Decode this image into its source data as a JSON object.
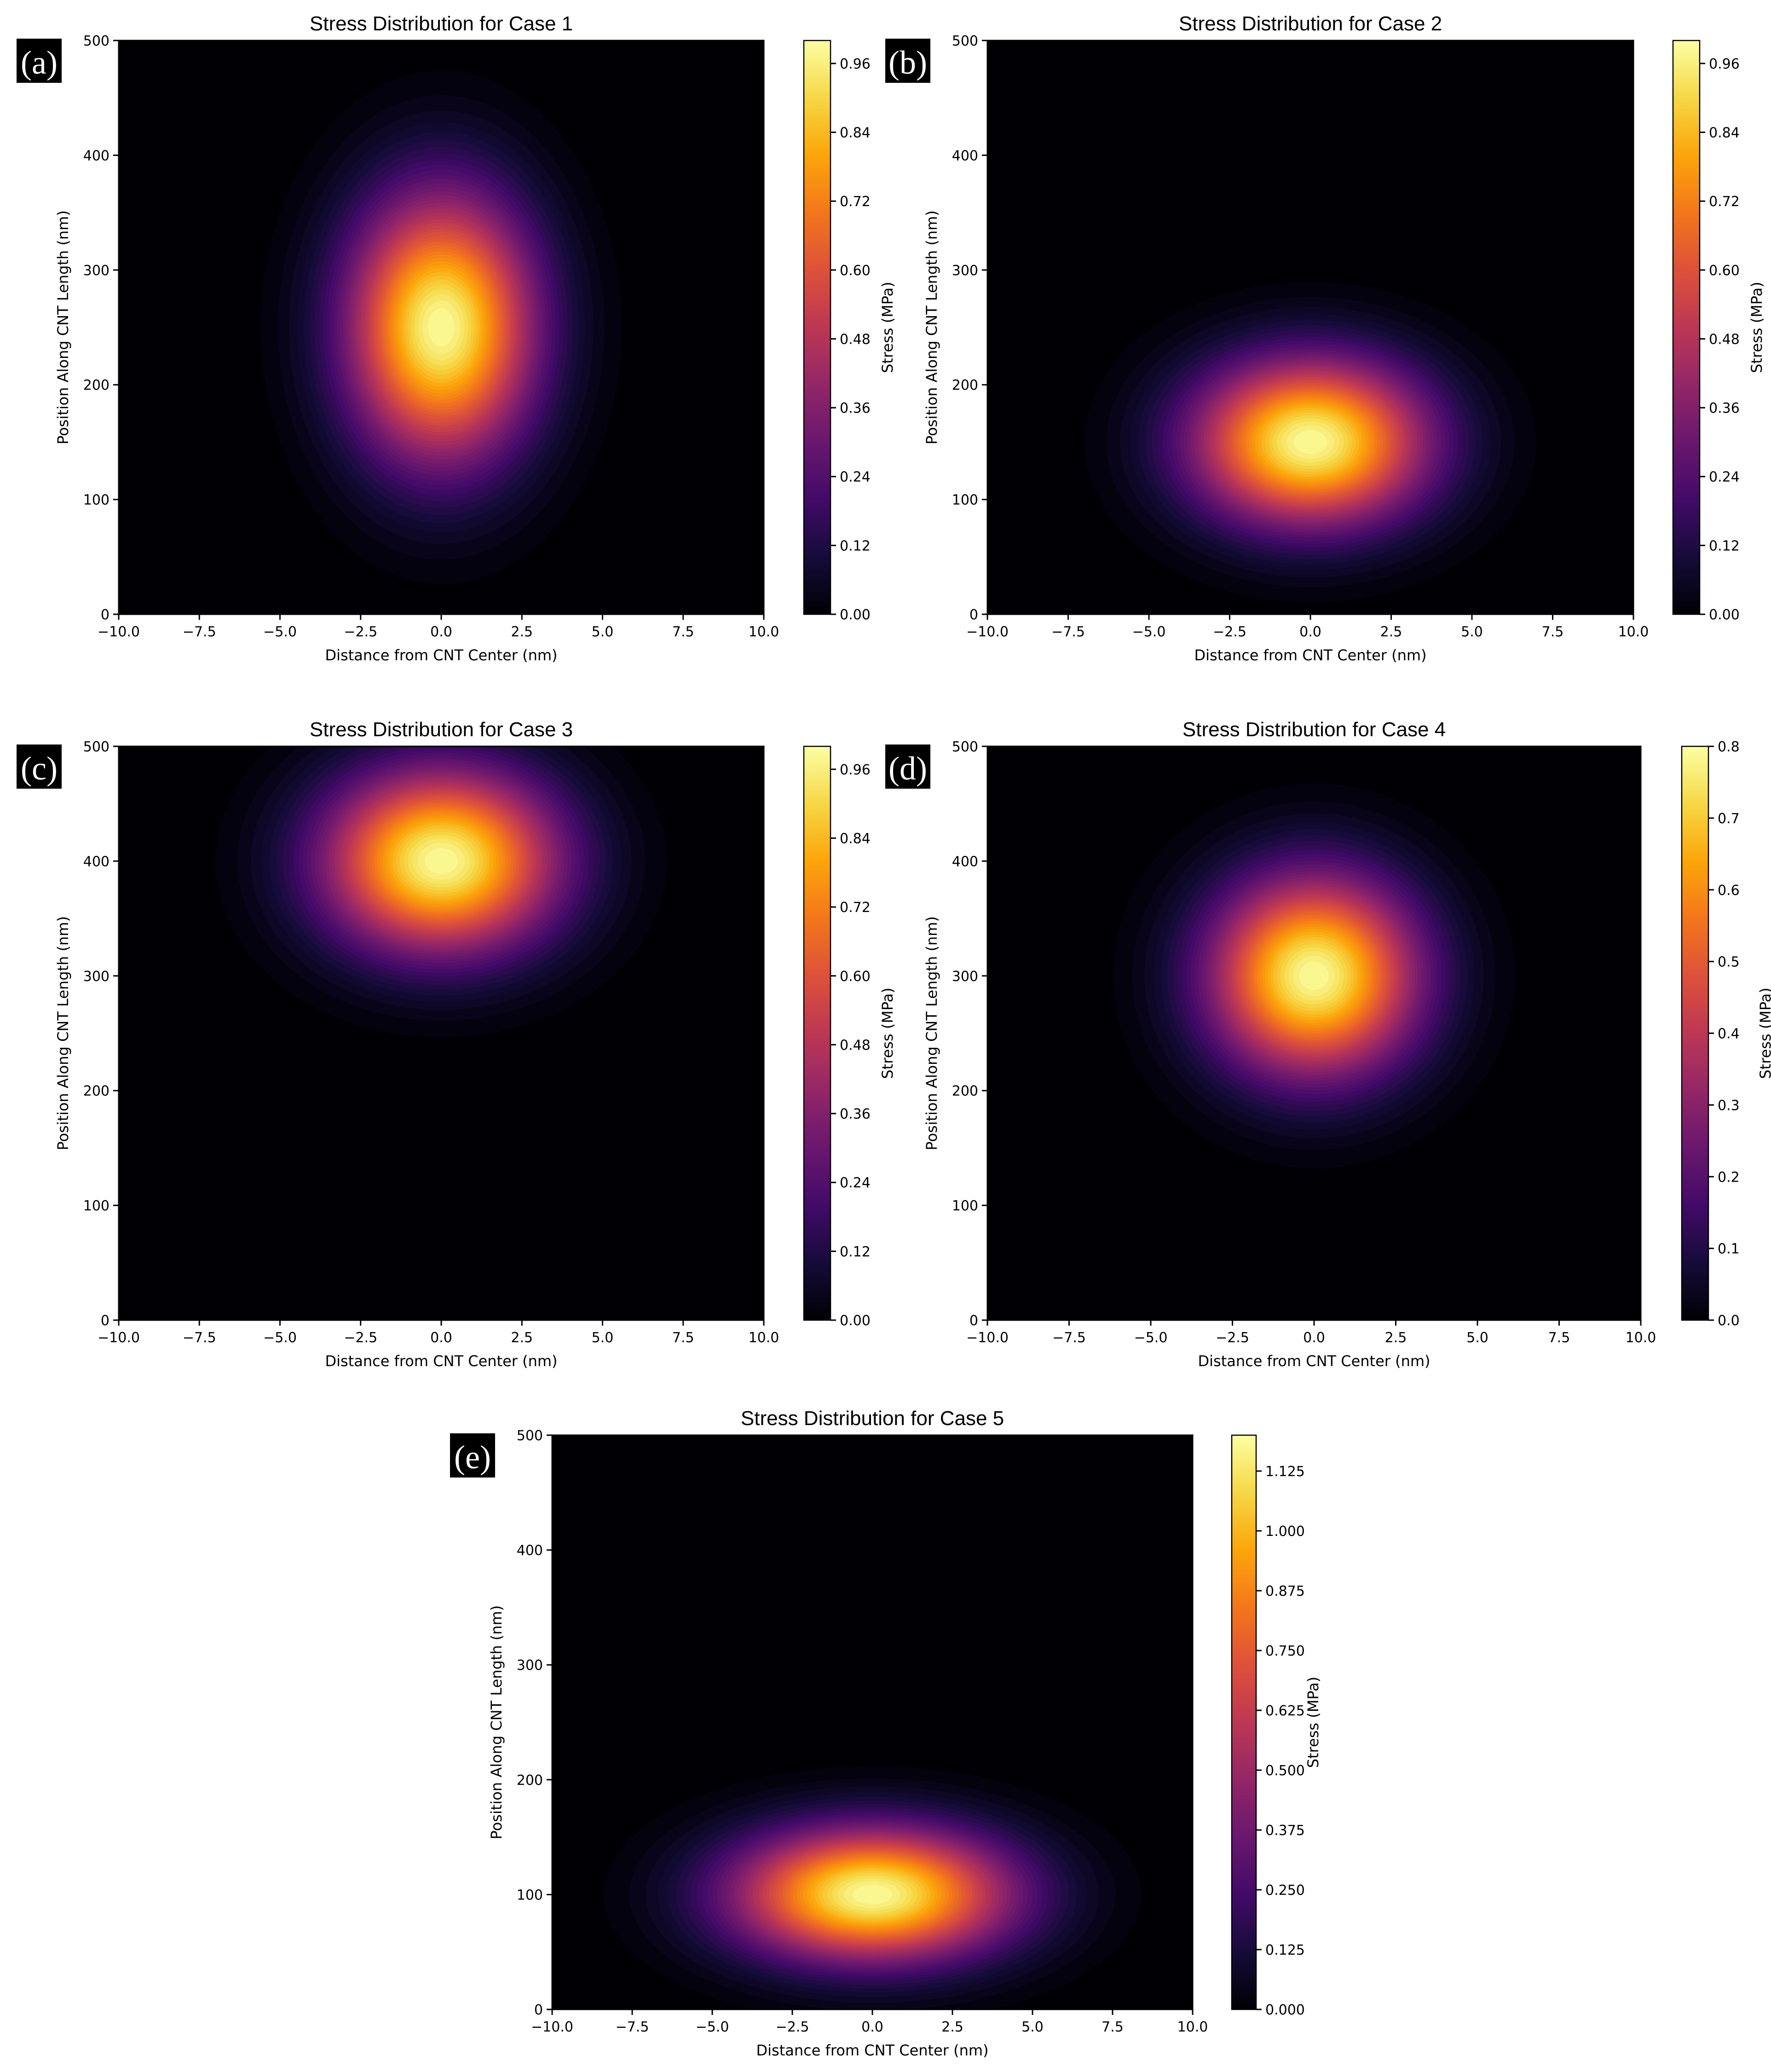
{
  "figure": {
    "colormap": "inferno",
    "background": "#ffffff",
    "panels": [
      {
        "panel_label": "(a)",
        "chart_data": {
          "type": "heatmap",
          "title": "Stress Distribution for Case 1",
          "xlabel": "Distance from CNT Center (nm)",
          "ylabel": "Position Along CNT Length (nm)",
          "colorbar_label": "Stress (MPa)",
          "xlim": [
            -10,
            10
          ],
          "ylim": [
            0,
            500
          ],
          "x_ticks": [
            "−10.0",
            "−7.5",
            "−5.0",
            "−2.5",
            "0.0",
            "2.5",
            "5.0",
            "7.5",
            "10.0"
          ],
          "y_ticks": [
            "0",
            "100",
            "200",
            "300",
            "400",
            "500"
          ],
          "clim": [
            0,
            1.0
          ],
          "colorbar_ticks": [
            "0.00",
            "0.12",
            "0.24",
            "0.36",
            "0.48",
            "0.60",
            "0.72",
            "0.84",
            "0.96"
          ],
          "peak": {
            "x": 0,
            "y": 250,
            "value": 1.0,
            "sigma_x": 2.0,
            "sigma_y": 80
          },
          "grid": false
        }
      },
      {
        "panel_label": "(b)",
        "chart_data": {
          "type": "heatmap",
          "title": "Stress Distribution for Case 2",
          "xlabel": "Distance from CNT Center (nm)",
          "ylabel": "Position Along CNT Length (nm)",
          "colorbar_label": "Stress (MPa)",
          "xlim": [
            -10,
            10
          ],
          "ylim": [
            0,
            500
          ],
          "x_ticks": [
            "−10.0",
            "−7.5",
            "−5.0",
            "−2.5",
            "0.0",
            "2.5",
            "5.0",
            "7.5",
            "10.0"
          ],
          "y_ticks": [
            "0",
            "100",
            "200",
            "300",
            "400",
            "500"
          ],
          "clim": [
            0,
            1.0
          ],
          "colorbar_ticks": [
            "0.00",
            "0.12",
            "0.24",
            "0.36",
            "0.48",
            "0.60",
            "0.72",
            "0.84",
            "0.96"
          ],
          "peak": {
            "x": 0,
            "y": 150,
            "value": 1.0,
            "sigma_x": 2.5,
            "sigma_y": 50
          },
          "grid": false
        }
      },
      {
        "panel_label": "(c)",
        "chart_data": {
          "type": "heatmap",
          "title": "Stress Distribution for Case 3",
          "xlabel": "Distance from CNT Center (nm)",
          "ylabel": "Position Along CNT Length (nm)",
          "colorbar_label": "Stress (MPa)",
          "xlim": [
            -10,
            10
          ],
          "ylim": [
            0,
            500
          ],
          "x_ticks": [
            "−10.0",
            "−7.5",
            "−5.0",
            "−2.5",
            "0.0",
            "2.5",
            "5.0",
            "7.5",
            "10.0"
          ],
          "y_ticks": [
            "0",
            "100",
            "200",
            "300",
            "400",
            "500"
          ],
          "clim": [
            0,
            1.0
          ],
          "colorbar_ticks": [
            "0.00",
            "0.12",
            "0.24",
            "0.36",
            "0.48",
            "0.60",
            "0.72",
            "0.84",
            "0.96"
          ],
          "peak": {
            "x": 0,
            "y": 400,
            "value": 1.0,
            "sigma_x": 2.5,
            "sigma_y": 55
          },
          "grid": false
        }
      },
      {
        "panel_label": "(d)",
        "chart_data": {
          "type": "heatmap",
          "title": "Stress Distribution for Case 4",
          "xlabel": "Distance from CNT Center (nm)",
          "ylabel": "Position Along CNT Length (nm)",
          "colorbar_label": "Stress (MPa)",
          "xlim": [
            -10,
            10
          ],
          "ylim": [
            0,
            500
          ],
          "x_ticks": [
            "−10.0",
            "−7.5",
            "−5.0",
            "−2.5",
            "0.0",
            "2.5",
            "5.0",
            "7.5",
            "10.0"
          ],
          "y_ticks": [
            "0",
            "100",
            "200",
            "300",
            "400",
            "500"
          ],
          "clim": [
            0,
            0.8
          ],
          "colorbar_ticks": [
            "0.0",
            "0.1",
            "0.2",
            "0.3",
            "0.4",
            "0.5",
            "0.6",
            "0.7",
            "0.8"
          ],
          "peak": {
            "x": 0,
            "y": 300,
            "value": 0.8,
            "sigma_x": 2.2,
            "sigma_y": 60
          },
          "grid": false
        }
      },
      {
        "panel_label": "(e)",
        "chart_data": {
          "type": "heatmap",
          "title": "Stress Distribution for Case 5",
          "xlabel": "Distance from CNT Center (nm)",
          "ylabel": "Position Along CNT Length (nm)",
          "colorbar_label": "Stress (MPa)",
          "xlim": [
            -10,
            10
          ],
          "ylim": [
            0,
            500
          ],
          "x_ticks": [
            "−10.0",
            "−7.5",
            "−5.0",
            "−2.5",
            "0.0",
            "2.5",
            "5.0",
            "7.5",
            "10.0"
          ],
          "y_ticks": [
            "0",
            "100",
            "200",
            "300",
            "400",
            "500"
          ],
          "clim": [
            0,
            1.2
          ],
          "colorbar_ticks": [
            "0.000",
            "0.125",
            "0.250",
            "0.375",
            "0.500",
            "0.625",
            "0.750",
            "0.875",
            "1.000",
            "1.125"
          ],
          "peak": {
            "x": 0,
            "y": 100,
            "value": 1.2,
            "sigma_x": 3.0,
            "sigma_y": 40
          },
          "grid": false
        }
      }
    ]
  }
}
